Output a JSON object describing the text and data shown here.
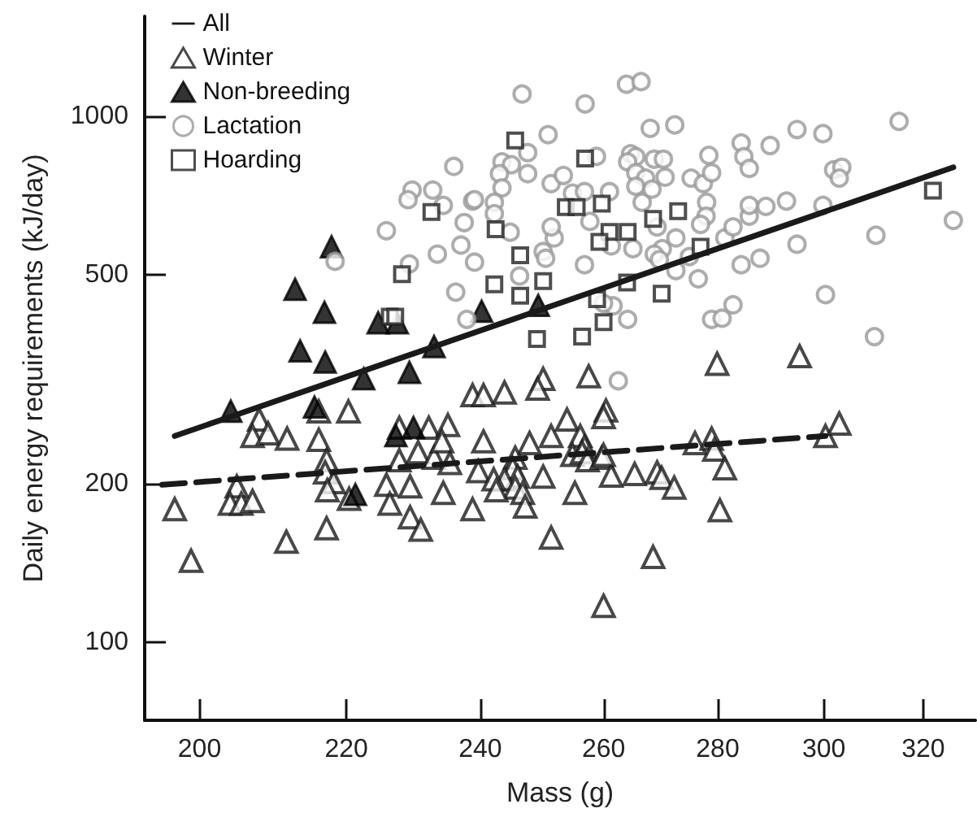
{
  "chart_data": {
    "type": "scatter",
    "xlabel": "Mass (g)",
    "ylabel": "Daily energy requirements (kJ/day)",
    "log": "xy",
    "legend": "top left",
    "xlim": [
      193,
      331
    ],
    "ylim": [
      71,
      1550
    ],
    "xticks": [
      200,
      220,
      240,
      260,
      280,
      300,
      320
    ],
    "yticks": [
      100,
      200,
      500,
      1000
    ],
    "series": [
      {
        "name": "All",
        "type": "line",
        "color": "#1a1a1a",
        "line_style": "solid",
        "marker": "none",
        "x": [
          196.8,
          326.3
        ],
        "values": [
          246.6,
          800
        ]
      },
      {
        "name": "Winter",
        "color": "#1a1a1a",
        "marker": "triangle",
        "x": [
          196.8,
          198.9,
          204.9,
          204,
          205.5,
          207,
          207.9,
          207,
          209.1,
          211.7,
          211.6,
          216.1,
          220.3,
          216.1,
          217.2,
          217,
          218.2,
          217.3,
          217.2,
          220.4,
          225.8,
          227.7,
          226.3,
          229.3,
          229.3,
          230.9,
          227.7,
          232.1,
          235,
          230.5,
          232.9,
          234.1,
          235.3,
          234.3,
          238.8,
          240.5,
          238.8,
          240.5,
          239.7,
          243.8,
          250,
          249.1,
          257.5,
          260.4,
          260,
          279.9,
          295.3,
          247.8,
          251.3,
          253.9,
          256.1,
          256.8,
          254.8,
          245.5,
          245.1,
          245.9,
          243.8,
          245.5,
          246.7,
          247.1,
          242.1,
          242.5,
          250,
          255.2,
          251.3,
          256.4,
          257.3,
          259.7,
          261.3,
          265.3,
          269.2,
          270,
          272.2,
          260,
          275.9,
          278.9,
          279.4,
          281.3,
          280.4,
          268.5,
          260,
          300.3,
          303
        ],
        "values": [
          179,
          142.8,
          197.8,
          183.4,
          183.4,
          185.5,
          265,
          246.6,
          249.5,
          243.8,
          155.2,
          274.6,
          274.6,
          242.6,
          221.8,
          210.4,
          201.6,
          194.5,
          164.7,
          187.3,
          199.2,
          221.8,
          183.4,
          197.8,
          172.8,
          163.6,
          255.7,
          255.7,
          258.7,
          229.7,
          224.3,
          240.9,
          219.1,
          192.3,
          294.9,
          294.9,
          179,
          240.9,
          211.4,
          298.4,
          316.7,
          303.4,
          320.3,
          275.8,
          268,
          338.4,
          349.8,
          239.1,
          246.6,
          265,
          246.6,
          235.2,
          227,
          224.3,
          214,
          206.5,
          204,
          196.8,
          192.3,
          181.1,
          204,
          194.5,
          206.5,
          192.3,
          158.1,
          229.7,
          221.8,
          224.3,
          207.4,
          208.9,
          210.4,
          205.4,
          196.8,
          227,
          239.1,
          243.8,
          232.4,
          214,
          178.2,
          145.2,
          117.2,
          246.6,
          260.5
        ]
      },
      {
        "type": "line",
        "color": "#1a1a1a",
        "line_style": "dashed",
        "marker": "none",
        "x": [
          195.2,
          300.3
        ],
        "values": [
          199.2,
          246.6
        ]
      },
      {
        "name": "Non-breeding",
        "color": "#000000",
        "marker": "triangle",
        "x": [
          204.1,
          212.8,
          213.5,
          215.5,
          216.9,
          217,
          217.9,
          221.3,
          222.5,
          224.6,
          227.2,
          227.4,
          229.2,
          229.8,
          232.9,
          240.2,
          249.2
        ],
        "values": [
          275,
          469,
          358,
          280,
          424,
          341,
          565,
          191,
          317,
          405,
          247,
          405,
          326,
          256,
          365,
          426,
          437
        ]
      },
      {
        "name": "Lactation",
        "color": "#999999",
        "marker": "circle",
        "x": [
          235.9,
          229.6,
          232.7,
          229,
          234.3,
          238.8,
          225.8,
          237.5,
          233.4,
          237,
          239.1,
          218.4,
          229.2,
          236.2,
          237.9,
          246.6,
          256.9,
          263.9,
          266.4,
          250.8,
          247.5,
          243.4,
          244.9,
          243,
          247.5,
          243.4,
          242.2,
          239.1,
          242.2,
          251.3,
          253.3,
          254.8,
          256.8,
          261,
          258.8,
          264.6,
          265.5,
          264.1,
          268.7,
          270.3,
          268,
          272.3,
          265.5,
          267.2,
          265.5,
          270.6,
          266.6,
          268.3,
          269.2,
          270.1,
          268.7,
          272.5,
          275.2,
          277.4,
          278.4,
          278.9,
          278,
          277.9,
          276.9,
          276.5,
          278.9,
          280.8,
          282.8,
          281.3,
          282.8,
          285.8,
          285.8,
          284.3,
          284.8,
          285.8,
          289.7,
          284.3,
          287.8,
          288.9,
          292.8,
          294.8,
          299.8,
          294.8,
          299.8,
          300.3,
          301.9,
          303.5,
          303,
          310,
          310.3,
          315,
          326.3,
          250,
          250.4,
          251.8,
          251.3,
          256.8,
          257.7,
          261.3,
          261.6,
          264.1,
          265,
          269.6,
          272.5,
          274.9,
          244.7,
          260,
          246.2,
          262.5
        ],
        "values": [
          803,
          724,
          724,
          694,
          677,
          690,
          606,
          628,
          547,
          569,
          528,
          530,
          524,
          463,
          411,
          1103,
          1056,
          1151,
          1164,
          923,
          853,
          819,
          809,
          778,
          778,
          731,
          686,
          694,
          653,
          745,
          772,
          714,
          719,
          719,
          839,
          849,
          838,
          819,
          829,
          829,
          949,
          963,
          781,
          763,
          736,
          766,
          686,
          727,
          616,
          560,
          547,
          587,
          763,
          745,
          843,
          781,
          686,
          646,
          623,
          491,
          411,
          413,
          438,
          587,
          616,
          646,
          677,
          890,
          838,
          796,
          880,
          522,
          537,
          674,
          690,
          944,
          927,
          571,
          677,
          458,
          791,
          800,
          763,
          381,
          594,
          978,
          634,
          553,
          537,
          587,
          616,
          522,
          631,
          567,
          436,
          411,
          560,
          534,
          509,
          541,
          602,
          441,
          497,
          314
        ]
      },
      {
        "name": "Hoarding",
        "color": "#222222",
        "marker": "square",
        "x": [
          232.5,
          228.1,
          226.3,
          227.1,
          245.5,
          256.9,
          253.7,
          255.5,
          259.7,
          272.9,
          242.4,
          268.5,
          261,
          264.1,
          259.3,
          276.9,
          246.3,
          242.2,
          250,
          246.3,
          264,
          258.9,
          270,
          249,
          256.4,
          260,
          322
        ],
        "values": [
          658,
          501,
          416,
          416,
          900,
          831,
          672,
          672,
          682,
          660,
          610,
          638,
          603,
          603,
          577,
          565,
          544,
          479,
          486,
          456,
          483,
          449,
          460,
          377,
          381,
          406,
          722
        ]
      }
    ]
  }
}
